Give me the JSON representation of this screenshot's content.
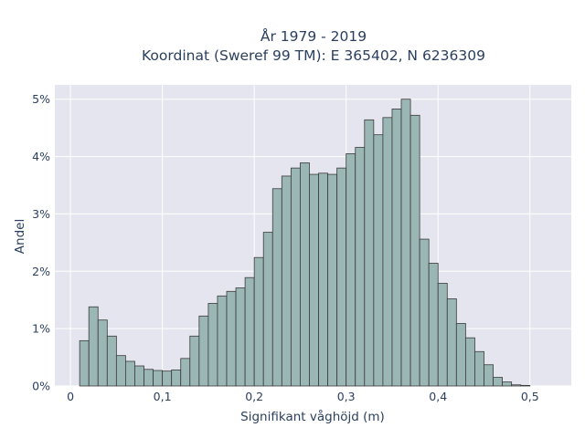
{
  "chart_data": {
    "type": "bar",
    "title_line1": "År 1979 - 2019",
    "title_line2": "Koordinat (Sweref 99 TM): E 365402, N 6236309",
    "xlabel": "Signifikant våghöjd (m)",
    "ylabel": "Andel",
    "xlim": [
      -0.017,
      0.545
    ],
    "ylim": [
      0,
      0.0525
    ],
    "bin_width": 0.01,
    "bin_start": 0.01,
    "x_ticks": [
      {
        "value": 0,
        "label": "0"
      },
      {
        "value": 0.1,
        "label": "0,1"
      },
      {
        "value": 0.2,
        "label": "0,2"
      },
      {
        "value": 0.3,
        "label": "0,3"
      },
      {
        "value": 0.4,
        "label": "0,4"
      },
      {
        "value": 0.5,
        "label": "0,5"
      }
    ],
    "y_ticks": [
      {
        "value": 0,
        "label": "0%"
      },
      {
        "value": 0.01,
        "label": "1%"
      },
      {
        "value": 0.02,
        "label": "2%"
      },
      {
        "value": 0.03,
        "label": "3%"
      },
      {
        "value": 0.04,
        "label": "4%"
      },
      {
        "value": 0.05,
        "label": "5%"
      }
    ],
    "values": [
      0.0079,
      0.0138,
      0.0115,
      0.0087,
      0.0053,
      0.0043,
      0.0035,
      0.0029,
      0.0027,
      0.0026,
      0.0028,
      0.0048,
      0.0087,
      0.0122,
      0.0144,
      0.0157,
      0.0165,
      0.0171,
      0.0189,
      0.0224,
      0.0268,
      0.0344,
      0.0366,
      0.038,
      0.0389,
      0.0369,
      0.0371,
      0.0369,
      0.038,
      0.0405,
      0.0416,
      0.0464,
      0.0438,
      0.0468,
      0.0483,
      0.05,
      0.0472,
      0.0256,
      0.0214,
      0.0179,
      0.0152,
      0.0109,
      0.0084,
      0.006,
      0.0037,
      0.0015,
      0.0007,
      0.0002,
      0.0001
    ]
  }
}
